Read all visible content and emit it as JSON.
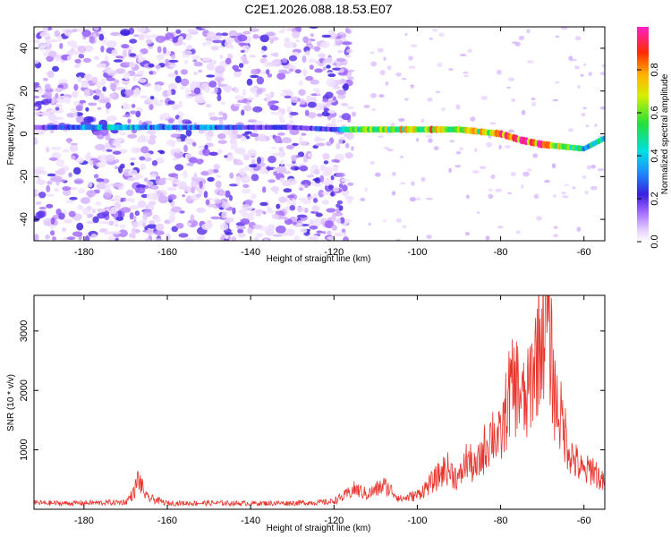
{
  "title": "C2E1.2026.088.18.53.E07",
  "chart_data": [
    {
      "type": "heatmap",
      "xlabel": "Height of straight line (km)",
      "ylabel": "Frequency (Hz)",
      "xlim": [
        -192,
        -55
      ],
      "ylim": [
        -50,
        50
      ],
      "xticks": [
        -180,
        -160,
        -140,
        -120,
        -100,
        -80,
        -60
      ],
      "yticks": [
        -40,
        -20,
        0,
        20,
        40
      ],
      "colorbar": {
        "label": "Normalized spectral amplitude",
        "range": [
          0,
          1
        ],
        "ticks": [
          0.0,
          0.2,
          0.4,
          0.6,
          0.8
        ]
      },
      "signal_band": {
        "x": [
          -192,
          -170,
          -160,
          -150,
          -140,
          -130,
          -120,
          -115,
          -110,
          -100,
          -95,
          -90,
          -85,
          -80,
          -75,
          -70,
          -65,
          -60,
          -55
        ],
        "freq": [
          3,
          3,
          3,
          3,
          3,
          3,
          2,
          2,
          2,
          2,
          2,
          2,
          1,
          0,
          -3,
          -5,
          -6,
          -7,
          -2
        ],
        "amplitude": [
          0.18,
          0.45,
          0.3,
          0.35,
          0.2,
          0.2,
          0.25,
          0.55,
          0.6,
          0.7,
          0.75,
          0.65,
          0.7,
          0.8,
          0.85,
          0.9,
          0.6,
          0.4,
          0.5
        ]
      },
      "noise_extent_km": [
        -192,
        -120
      ]
    },
    {
      "type": "line",
      "xlabel": "Height of straight line (km)",
      "ylabel": "SNR (10 * v/v)",
      "xlim": [
        -192,
        -55
      ],
      "ylim": [
        0,
        3600
      ],
      "xticks": [
        -180,
        -160,
        -140,
        -120,
        -100,
        -80,
        -60
      ],
      "yticks": [
        1000,
        2000,
        3000
      ],
      "color": "#e8342c",
      "x": [
        -192,
        -185,
        -180,
        -175,
        -170,
        -168,
        -167,
        -165,
        -160,
        -150,
        -140,
        -130,
        -121,
        -118,
        -115,
        -112,
        -108,
        -106,
        -104,
        -100,
        -96,
        -93,
        -90,
        -88,
        -86,
        -84,
        -82,
        -80,
        -78,
        -76,
        -74,
        -72,
        -70,
        -69,
        -67,
        -65,
        -63,
        -60,
        -58,
        -55
      ],
      "y": [
        110,
        100,
        105,
        110,
        120,
        280,
        520,
        200,
        100,
        105,
        100,
        105,
        120,
        200,
        340,
        250,
        400,
        300,
        170,
        240,
        480,
        700,
        500,
        850,
        650,
        1000,
        1300,
        1150,
        1950,
        2100,
        1700,
        2450,
        3000,
        3450,
        1900,
        1400,
        900,
        600,
        700,
        400
      ]
    }
  ]
}
